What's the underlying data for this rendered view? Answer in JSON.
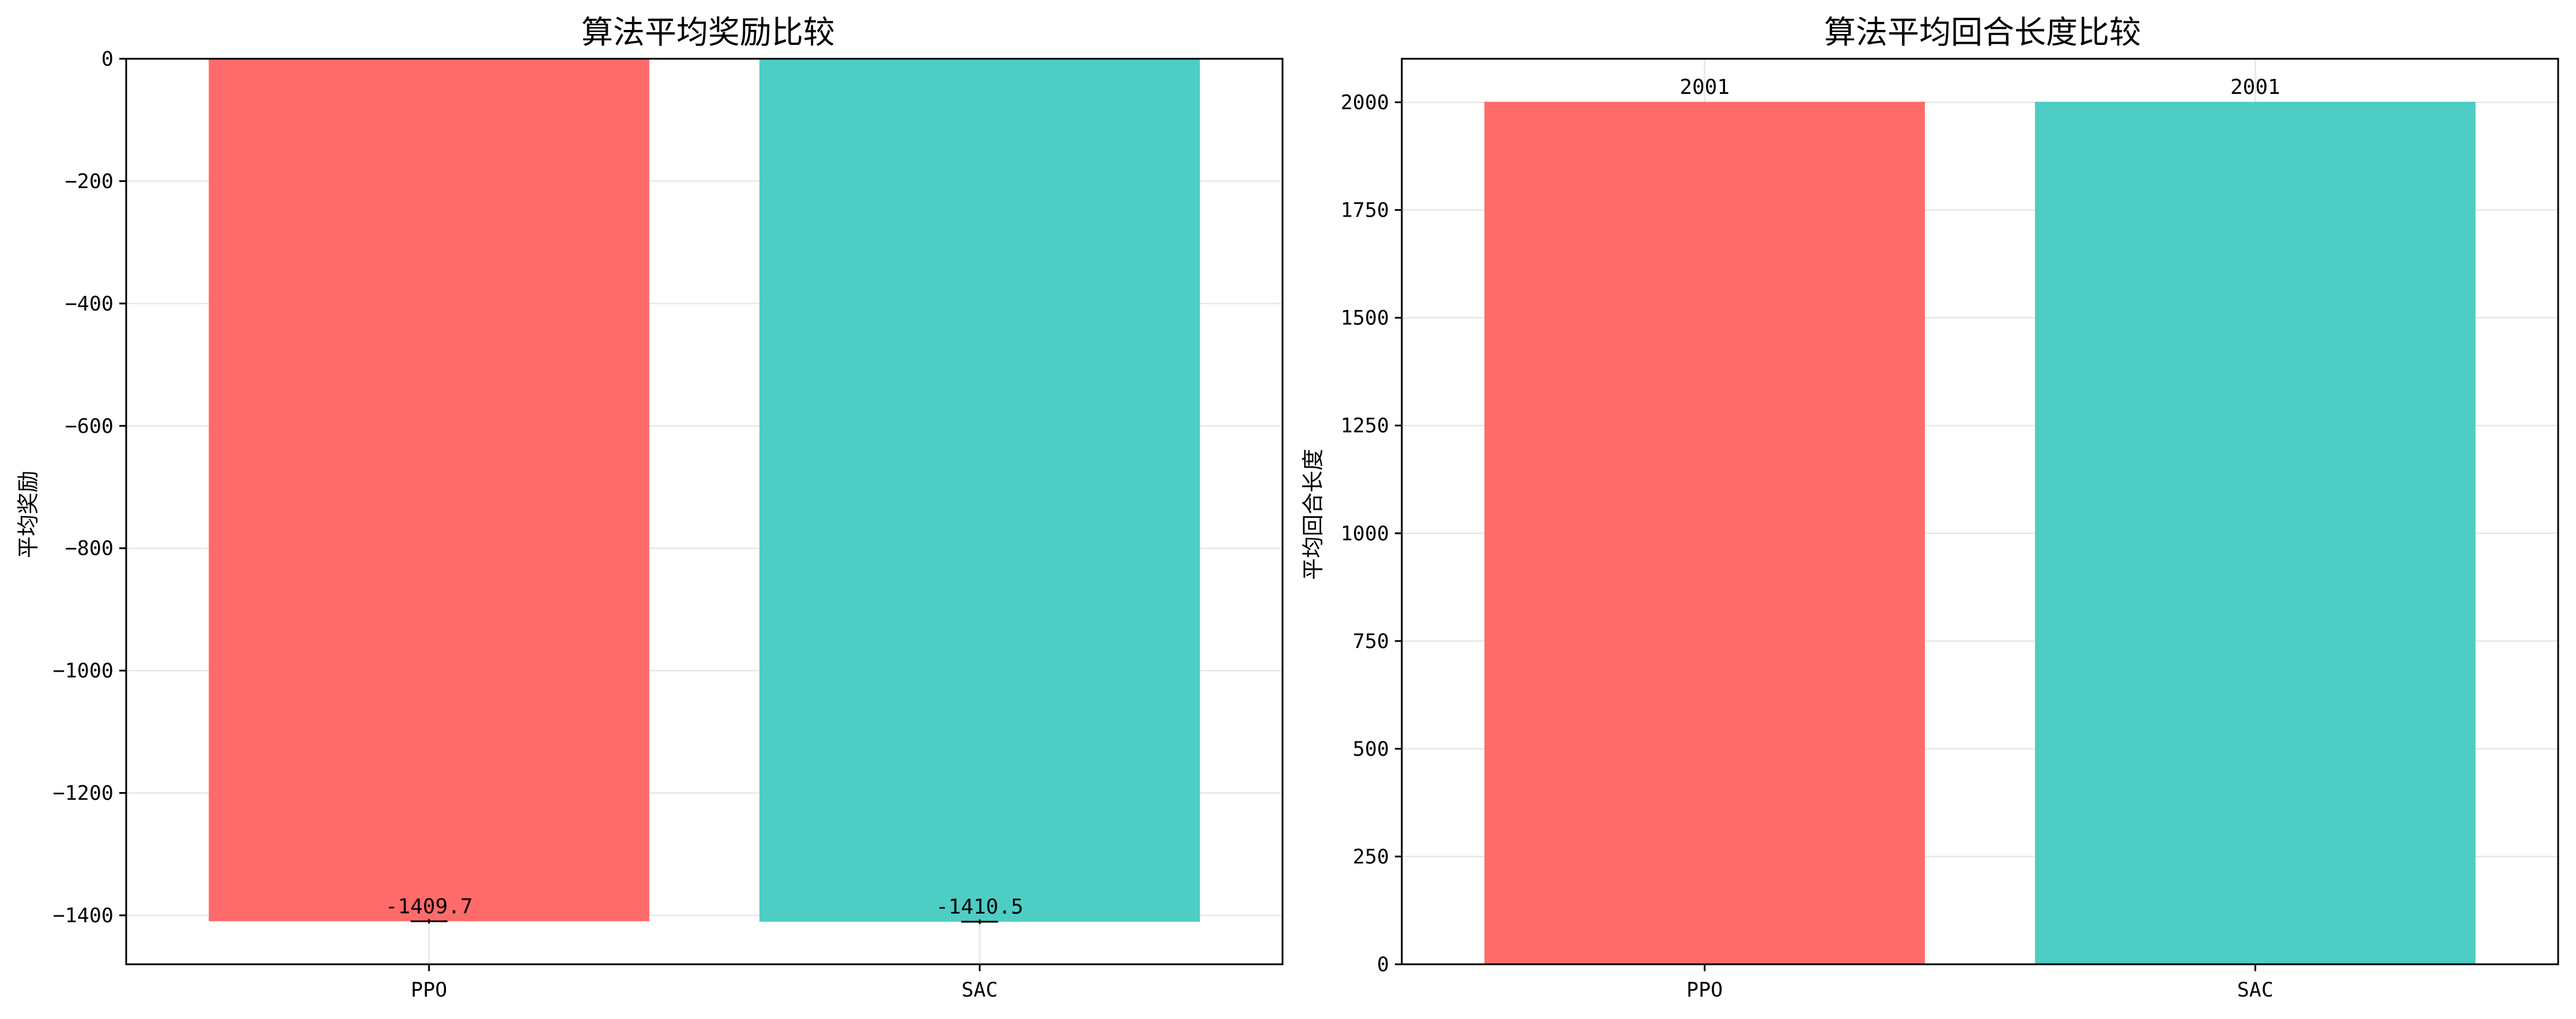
{
  "chart_data": [
    {
      "type": "bar",
      "title": "算法平均奖励比较",
      "xlabel": "",
      "ylabel": "平均奖励",
      "categories": [
        "PPO",
        "SAC"
      ],
      "values": [
        -1409.7,
        -1410.5
      ],
      "value_labels": [
        "-1409.7",
        "-1410.5"
      ],
      "colors": [
        "#ff6b6b",
        "#4ecdc4"
      ],
      "bar_alpha": 1.0,
      "ylim": [
        -1480,
        0
      ],
      "yticks": [
        0,
        -200,
        -400,
        -600,
        -800,
        -1000,
        -1200,
        -1400
      ],
      "ytick_labels": [
        "0",
        "−200",
        "−400",
        "−600",
        "−800",
        "−1000",
        "−1200",
        "−1400"
      ],
      "error_bars": true,
      "grid": true
    },
    {
      "type": "bar",
      "title": "算法平均回合长度比较",
      "xlabel": "",
      "ylabel": "平均回合长度",
      "categories": [
        "PPO",
        "SAC"
      ],
      "values": [
        2001,
        2001
      ],
      "value_labels": [
        "2001",
        "2001"
      ],
      "colors": [
        "#ff6b6b",
        "#4ecdc4"
      ],
      "bar_alpha": 1.0,
      "ylim": [
        0,
        2101
      ],
      "yticks": [
        0,
        250,
        500,
        750,
        1000,
        1250,
        1500,
        1750,
        2000
      ],
      "ytick_labels": [
        "0",
        "250",
        "500",
        "750",
        "1000",
        "1250",
        "1500",
        "1750",
        "2000"
      ],
      "error_bars": false,
      "grid": true
    }
  ]
}
